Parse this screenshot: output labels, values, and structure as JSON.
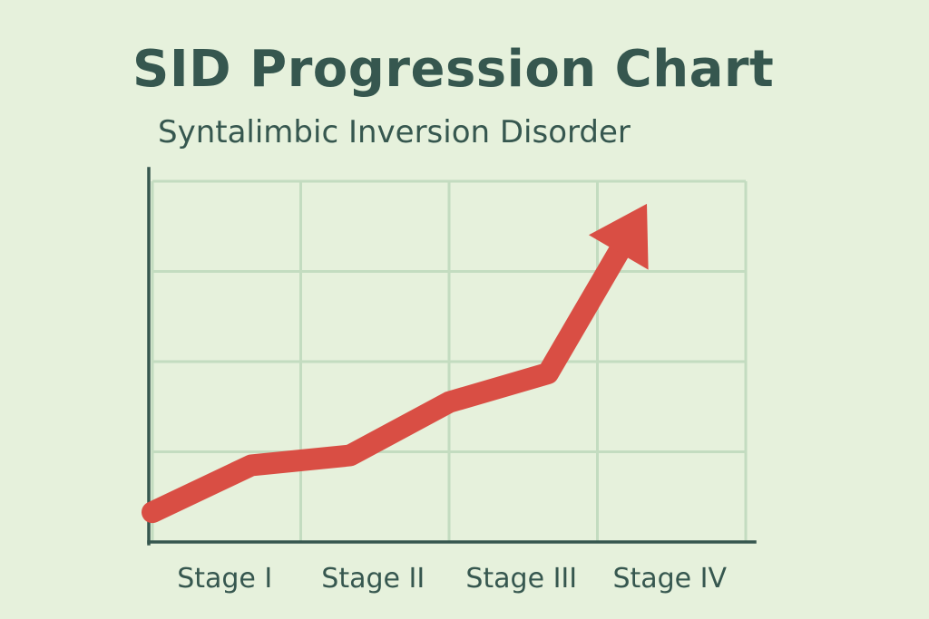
{
  "chart_data": {
    "type": "line",
    "title": "SID Progression Chart",
    "subtitle": "Syntalimbic Inversion Disorder",
    "categories": [
      "Stage I",
      "Stage II",
      "Stage III",
      "Stage IV"
    ],
    "series": [
      {
        "x": [
          0,
          1,
          2,
          3,
          4,
          5
        ],
        "values": [
          0.33,
          0.85,
          0.96,
          1.55,
          1.87,
          3.75
        ],
        "color": "#d94e44"
      }
    ],
    "ylim": [
      0,
      4
    ],
    "xlim": [
      0,
      6
    ],
    "grid": true,
    "end_marker": "arrow",
    "colors": {
      "background": "#e6f1dc",
      "grid": "#c3dcc0",
      "axis": "#36574f",
      "text": "#36574f",
      "line": "#d94e44"
    }
  }
}
